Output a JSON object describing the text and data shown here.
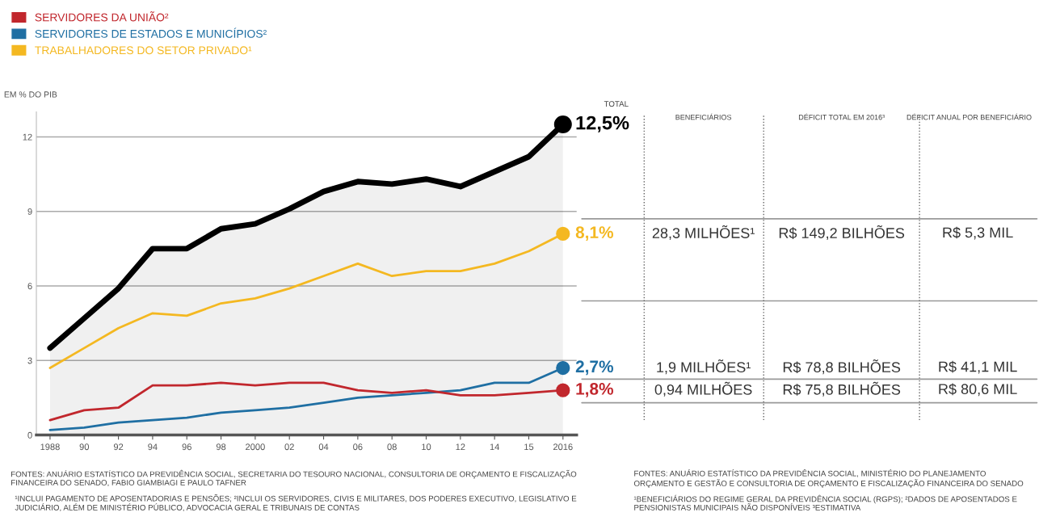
{
  "chart_data": {
    "type": "line",
    "ylabel": "EM % DO PIB",
    "categories": [
      "1988",
      "90",
      "92",
      "94",
      "96",
      "98",
      "2000",
      "02",
      "04",
      "06",
      "08",
      "10",
      "12",
      "14",
      "15",
      "2016"
    ],
    "series": [
      {
        "type": "area",
        "color": "#000000",
        "values": [
          3.5,
          4.7,
          5.9,
          7.5,
          7.5,
          8.3,
          8.5,
          9.1,
          9.8,
          10.2,
          10.1,
          10.3,
          10.0,
          10.6,
          11.2,
          12.5
        ],
        "value_labels": [
          null,
          null,
          null,
          null,
          null,
          null,
          null,
          null,
          null,
          null,
          null,
          null,
          null,
          null,
          null,
          "12,5%"
        ]
      },
      {
        "name": "TRABALHADORES DO SETOR PRIVADO¹",
        "color": "#f4b821",
        "values": [
          2.7,
          3.5,
          4.3,
          4.9,
          4.8,
          5.3,
          5.5,
          5.9,
          6.4,
          6.9,
          6.4,
          6.6,
          6.6,
          6.9,
          7.4,
          8.1
        ],
        "value_labels": [
          null,
          null,
          null,
          null,
          null,
          null,
          null,
          null,
          null,
          null,
          null,
          null,
          null,
          null,
          null,
          "8,1%"
        ]
      },
      {
        "name": "SERVIDORES DE ESTADOS E MUNICÍPIOS²",
        "color": "#1f6fa3",
        "values": [
          0.2,
          0.3,
          0.5,
          0.6,
          0.7,
          0.9,
          1.0,
          1.1,
          1.3,
          1.5,
          1.6,
          1.7,
          1.8,
          2.1,
          2.1,
          2.7
        ],
        "value_labels": [
          null,
          null,
          null,
          null,
          null,
          null,
          null,
          null,
          null,
          null,
          null,
          null,
          null,
          null,
          null,
          "2,7%"
        ]
      },
      {
        "name": "SERVIDORES DA UNIÃO²",
        "color": "#c1272d",
        "values": [
          0.6,
          1.0,
          1.1,
          2.0,
          2.0,
          2.1,
          2.0,
          2.1,
          2.1,
          1.8,
          1.7,
          1.8,
          1.6,
          1.6,
          1.7,
          1.8
        ],
        "value_labels": [
          null,
          null,
          null,
          null,
          null,
          null,
          null,
          null,
          null,
          null,
          null,
          null,
          null,
          null,
          null,
          "1,8%"
        ]
      }
    ],
    "ylim": [
      0,
      13
    ],
    "yticks": [
      0,
      3,
      6,
      9,
      12
    ],
    "grid": "y",
    "legend": "top left",
    "marker": "none",
    "line_style": "solid",
    "annotations": [
      "TOTAL",
      "BENEFICIÁRIOS",
      "DÉFICIT TOTAL EM 2016³",
      "DÉFICIT ANUAL POR BENEFICIÁRIO",
      "28,3 MILHÕES¹",
      "R$ 149,2 BILHÕES",
      "R$ 5,3 MIL",
      "1,9 MILHÕES¹",
      "R$ 78,8 BILHÕES",
      "R$ 41,1 MIL",
      "0,94 MILHÕES",
      "R$ 75,8 BILHÕES",
      "R$ 80,6 MIL",
      "FONTES: ANUÁRIO ESTATÍSTICO DA PREVIDÊNCIA SOCIAL, SECRETARIA DO TESOURO NACIONAL, CONSULTORIA DE ORÇAMENTO E FISCALIZAÇÃO FINANCEIRA DO SENADO, FABIO GIAMBIAGI E PAULO TAFNER",
      "¹INCLUI PAGAMENTO DE APOSENTADORIAS E PENSÕES; ²INCLUI OS SERVIDORES, CIVIS E MILITARES, DOS PODERES EXECUTIVO, LEGISLATIVO E JUDICIÁRIO, ALÉM DE MINISTÉRIO PÚBLICO, ADVOCACIA GERAL E TRIBUNAIS DE CONTAS",
      "FONTES: ANUÁRIO ESTATÍSTICO DA PREVIDÊNCIA SOCIAL, MINISTÉRIO DO PLANEJAMENTO ORÇAMENTO E GESTÃO E CONSULTORIA DE ORÇAMENTO E FISCALIZAÇÃO FINANCEIRA DO SENADO",
      "¹BENEFICIÁRIOS DO REGIME GERAL DA PREVIDÊNCIA SOCIAL (RGPS); ²DADOS DE APOSENTADOS E PENSIONISTAS MUNICIPAIS NÃO DISPONÍVEIS ³ESTIMATIVA"
    ]
  }
}
